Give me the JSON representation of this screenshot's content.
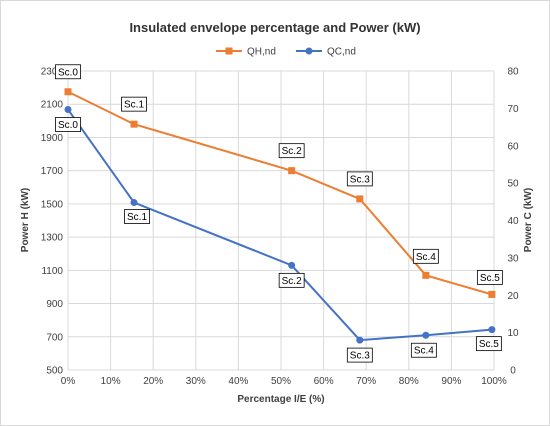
{
  "chart_data": {
    "type": "line",
    "title": "Insulated envelope percentage and Power (kW)",
    "xlabel": "Percentage I/E (%)",
    "ylabel_left": "Power H (kW)",
    "ylabel_right": "Power C (kW)",
    "xlim": [
      0,
      100
    ],
    "ylim_left": [
      500,
      2300
    ],
    "ylim_right": [
      0,
      80
    ],
    "x_ticks": [
      "0%",
      "10%",
      "20%",
      "30%",
      "40%",
      "50%",
      "60%",
      "70%",
      "80%",
      "90%",
      "100%"
    ],
    "y_left_ticks": [
      "500",
      "700",
      "900",
      "1100",
      "1300",
      "1500",
      "1700",
      "1900",
      "2100",
      "2300"
    ],
    "y_right_ticks": [
      "0",
      "10",
      "20",
      "30",
      "40",
      "50",
      "60",
      "70",
      "80"
    ],
    "grid": true,
    "legend_position": "top-center",
    "series": [
      {
        "name": "QH,nd",
        "axis": "left",
        "color": "#ed7d31",
        "marker": "square",
        "x": [
          0,
          15.5,
          52.5,
          68.5,
          84,
          99.5
        ],
        "y": [
          2175,
          1980,
          1700,
          1530,
          1070,
          955
        ],
        "labels": [
          "Sc.0",
          "Sc.1",
          "Sc.2",
          "Sc.3",
          "Sc.4",
          "Sc.5"
        ]
      },
      {
        "name": "QC,nd",
        "axis": "right",
        "color": "#4472c4",
        "marker": "circle",
        "x": [
          0,
          15.5,
          52.5,
          68.5,
          84,
          99.5
        ],
        "y": [
          69.7,
          44.8,
          28.0,
          8.0,
          9.3,
          10.8
        ],
        "labels": [
          "Sc.0",
          "Sc.1",
          "Sc.2",
          "Sc.3",
          "Sc.4",
          "Sc.5"
        ]
      }
    ]
  }
}
